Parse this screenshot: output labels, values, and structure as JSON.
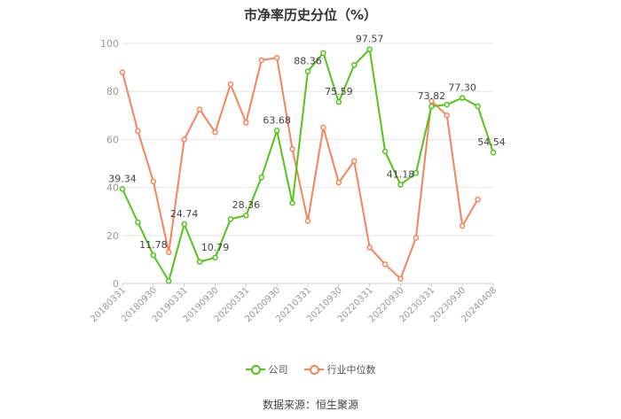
{
  "chart_data": {
    "type": "line",
    "title": "市净率历史分位（%）",
    "xlabel": "",
    "ylabel": "",
    "ylim": [
      0,
      100
    ],
    "yticks": [
      0,
      20,
      40,
      60,
      80,
      100
    ],
    "grid": true,
    "legend_position": "bottom",
    "x_tick_labels": [
      "20180331",
      "20180930",
      "20190331",
      "20190930",
      "20200331",
      "20200930",
      "20210331",
      "20210930",
      "20220331",
      "20220930",
      "20230331",
      "20230930",
      "20240408"
    ],
    "x": [
      "20180331",
      "20180630",
      "20180930",
      "20181231",
      "20190331",
      "20190630",
      "20190930",
      "20191231",
      "20200331",
      "20200630",
      "20200930",
      "20201231",
      "20210331",
      "20210630",
      "20210930",
      "20211231",
      "20220331",
      "20220630",
      "20220930",
      "20221231",
      "20230331",
      "20230630",
      "20230930",
      "20231231",
      "20240408"
    ],
    "series": [
      {
        "name": "公司",
        "color": "#52c41a",
        "values": [
          39.34,
          25.5,
          11.78,
          1.0,
          24.74,
          9.0,
          10.79,
          26.8,
          28.36,
          44.2,
          63.68,
          33.5,
          88.36,
          96.0,
          75.59,
          91.0,
          97.57,
          55.0,
          41.18,
          46.0,
          73.82,
          74.5,
          77.3,
          73.8,
          54.54
        ]
      },
      {
        "name": "行业中位数",
        "color": "#f5845a",
        "values": [
          88.0,
          63.5,
          42.5,
          13.0,
          60.0,
          72.5,
          63.0,
          83.0,
          67.0,
          93.0,
          94.0,
          56.0,
          26.0,
          65.0,
          42.0,
          51.0,
          15.0,
          8.0,
          2.0,
          19.0,
          76.0,
          70.0,
          24.0,
          35.0,
          null
        ]
      }
    ],
    "data_labels": [
      {
        "index": 0,
        "text": "39.34"
      },
      {
        "index": 2,
        "text": "11.78"
      },
      {
        "index": 4,
        "text": "24.74"
      },
      {
        "index": 6,
        "text": "10.79"
      },
      {
        "index": 8,
        "text": "28.36"
      },
      {
        "index": 10,
        "text": "63.68"
      },
      {
        "index": 12,
        "text": "88.36"
      },
      {
        "index": 14,
        "text": "75.59"
      },
      {
        "index": 16,
        "text": "97.57"
      },
      {
        "index": 18,
        "text": "41.18"
      },
      {
        "index": 20,
        "text": "73.82"
      },
      {
        "index": 22,
        "text": "77.30"
      },
      {
        "index": 24,
        "text": "54.54"
      }
    ]
  },
  "footer": {
    "source": "数据来源：恒生聚源"
  }
}
